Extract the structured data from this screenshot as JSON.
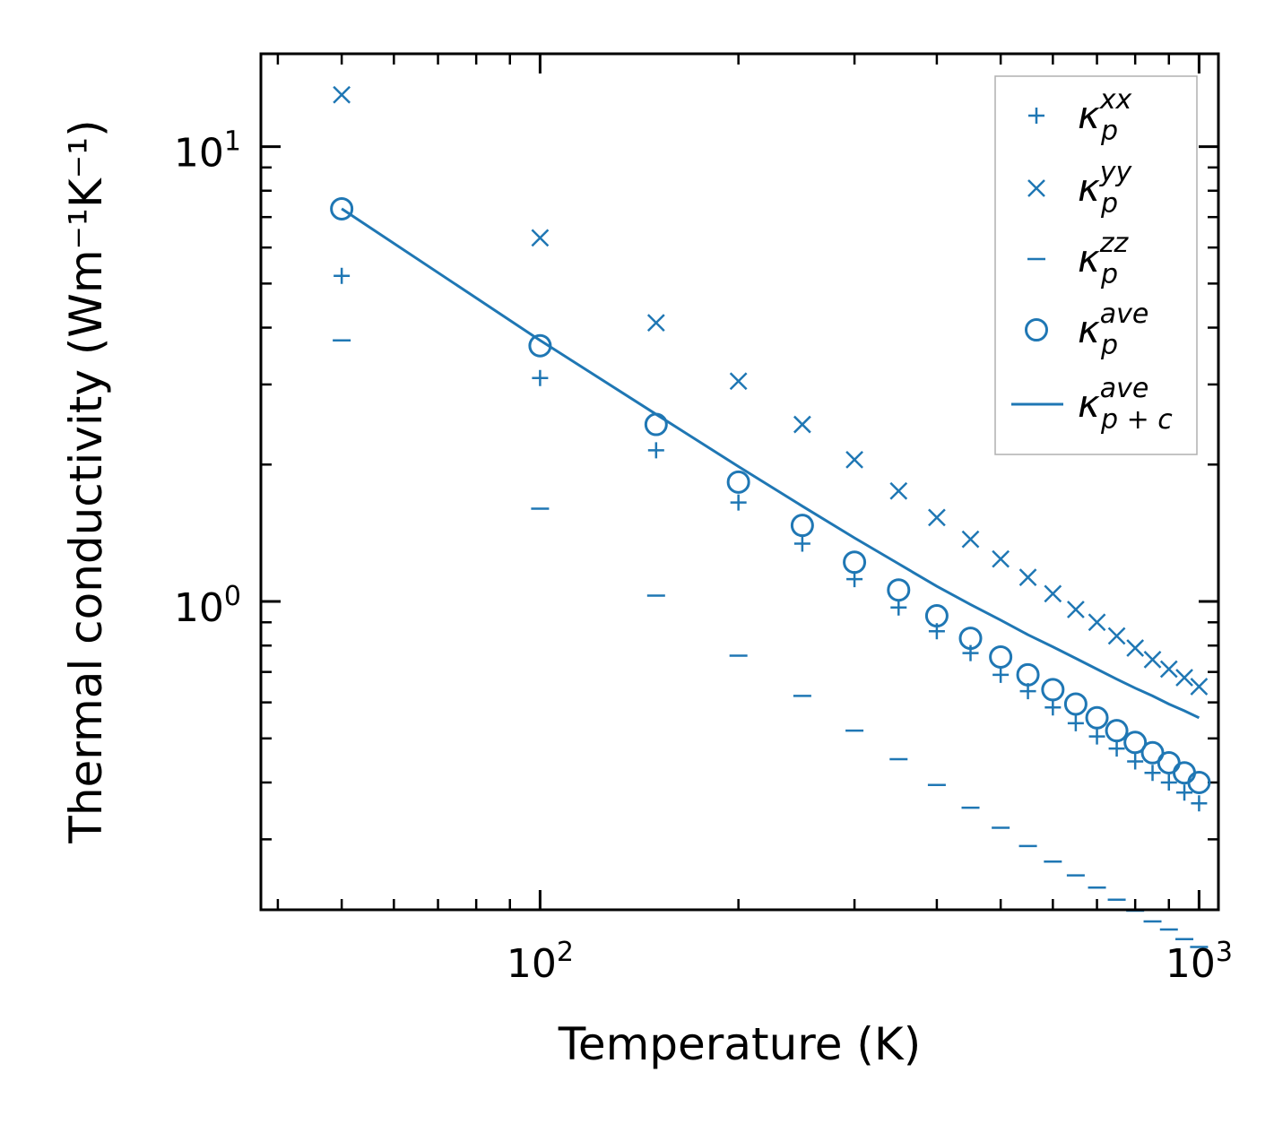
{
  "chart_data": {
    "type": "scatter",
    "xscale": "log",
    "yscale": "log",
    "xlabel": "Temperature (K)",
    "ylabel": "Thermal conductivity (Wm⁻¹K⁻¹)",
    "xlim": [
      37.7,
      1070
    ],
    "ylim": [
      0.21,
      16
    ],
    "x_ticks": [
      {
        "value": 100,
        "base": "10",
        "exp": "2"
      },
      {
        "value": 1000,
        "base": "10",
        "exp": "3"
      }
    ],
    "y_ticks": [
      {
        "value": 1,
        "base": "10",
        "exp": "0"
      },
      {
        "value": 10,
        "base": "10",
        "exp": "1"
      }
    ],
    "color": "#1f77b4",
    "x": [
      50,
      100,
      150,
      200,
      250,
      300,
      350,
      400,
      450,
      500,
      550,
      600,
      650,
      700,
      750,
      800,
      850,
      900,
      950,
      1000
    ],
    "series": [
      {
        "name": "kxx",
        "label": "κ",
        "sub": "p",
        "sup": "xx",
        "marker": "plus",
        "values": [
          5.2,
          3.1,
          2.15,
          1.65,
          1.34,
          1.12,
          0.97,
          0.86,
          0.77,
          0.69,
          0.635,
          0.585,
          0.54,
          0.505,
          0.475,
          0.445,
          0.42,
          0.4,
          0.38,
          0.36
        ]
      },
      {
        "name": "kyy",
        "label": "κ",
        "sub": "p",
        "sup": "yy",
        "marker": "x",
        "values": [
          13.0,
          6.3,
          4.1,
          3.05,
          2.45,
          2.05,
          1.75,
          1.53,
          1.37,
          1.24,
          1.13,
          1.04,
          0.96,
          0.9,
          0.84,
          0.79,
          0.745,
          0.71,
          0.68,
          0.65
        ]
      },
      {
        "name": "kzz",
        "label": "κ",
        "sub": "p",
        "sup": "zz",
        "marker": "hline",
        "values": [
          3.75,
          1.6,
          1.03,
          0.76,
          0.62,
          0.52,
          0.45,
          0.395,
          0.352,
          0.318,
          0.29,
          0.268,
          0.25,
          0.235,
          0.221,
          0.209,
          0.198,
          0.19,
          0.181,
          0.174
        ]
      },
      {
        "name": "kave",
        "label": "κ",
        "sub": "p",
        "sup": "ave",
        "marker": "circle",
        "values": [
          7.3,
          3.65,
          2.45,
          1.83,
          1.47,
          1.22,
          1.06,
          0.93,
          0.83,
          0.755,
          0.69,
          0.64,
          0.595,
          0.555,
          0.52,
          0.49,
          0.465,
          0.442,
          0.42,
          0.4
        ]
      },
      {
        "name": "kave_pc",
        "label": "κ",
        "sub": "p + c",
        "sup": "ave",
        "marker": "line",
        "values": [
          7.3,
          3.75,
          2.58,
          1.98,
          1.62,
          1.38,
          1.21,
          1.08,
          0.985,
          0.91,
          0.845,
          0.795,
          0.75,
          0.71,
          0.675,
          0.645,
          0.62,
          0.595,
          0.575,
          0.555
        ]
      }
    ],
    "legend": "top-right"
  }
}
